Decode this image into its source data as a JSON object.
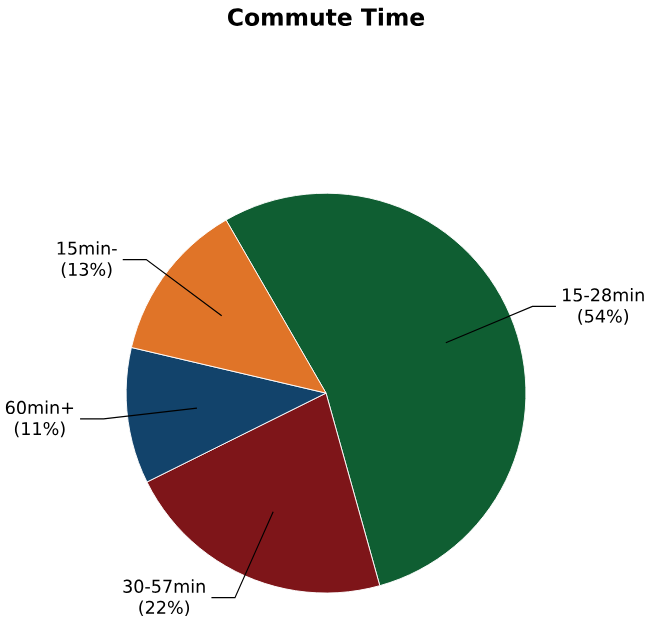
{
  "chart_data": {
    "type": "pie",
    "title": "Commute Time",
    "categories": [
      "15-28min",
      "30-57min",
      "60min+",
      "15min-"
    ],
    "values": [
      54,
      22,
      11,
      13
    ],
    "value_labels": [
      "(54%)",
      "(22%)",
      "(11%)",
      "(13%)"
    ],
    "colors": [
      "#0f5e32",
      "#7e1519",
      "#12436b",
      "#e07428"
    ]
  }
}
